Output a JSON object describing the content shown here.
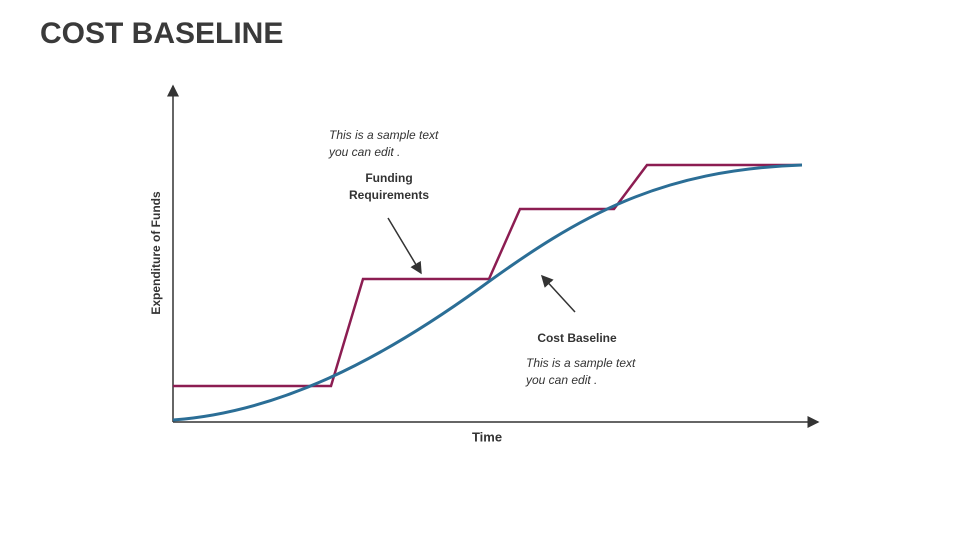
{
  "title": "COST BASELINE",
  "y_axis_label": "Expenditure of Funds",
  "x_axis_label": "Time",
  "funding": {
    "label_lines": [
      "Funding",
      "Requirements"
    ],
    "note_lines": [
      "This is a sample text",
      "you can edit ."
    ]
  },
  "baseline": {
    "label": "Cost Baseline",
    "note_lines": [
      "This is a sample text",
      "you can edit ."
    ]
  }
}
